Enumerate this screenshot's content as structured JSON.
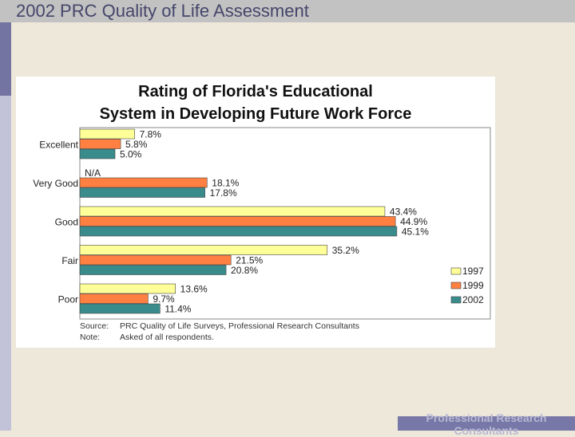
{
  "header": {
    "title": "2002 PRC Quality of Life Assessment"
  },
  "footer": {
    "text": "Professional Research Consultants"
  },
  "chart_data": {
    "type": "bar",
    "orientation": "horizontal",
    "title_line1": "Rating of Florida's Educational",
    "title_line2": "System in Developing Future Work Force",
    "categories": [
      "Excellent",
      "Very Good",
      "Good",
      "Fair",
      "Poor"
    ],
    "series": [
      {
        "name": "1997",
        "color": "#ffff99",
        "values": [
          7.8,
          null,
          43.4,
          35.2,
          13.6
        ],
        "labels": [
          "7.8%",
          "N/A",
          "43.4%",
          "35.2%",
          "13.6%"
        ]
      },
      {
        "name": "1999",
        "color": "#ff8040",
        "values": [
          5.8,
          18.1,
          44.9,
          21.5,
          9.7
        ],
        "labels": [
          "5.8%",
          "18.1%",
          "44.9%",
          "21.5%",
          "9.7%"
        ]
      },
      {
        "name": "2002",
        "color": "#3a8c8c",
        "values": [
          5.0,
          17.8,
          45.1,
          20.8,
          11.4
        ],
        "labels": [
          "5.0%",
          "17.8%",
          "45.1%",
          "20.8%",
          "11.4%"
        ]
      }
    ],
    "xlim": [
      0,
      50
    ],
    "legend_position": "bottom-right",
    "source_label": "Source:",
    "source_text": "PRC Quality of Life Surveys, Professional Research Consultants",
    "note_label": "Note:",
    "note_text": "Asked of all respondents."
  }
}
